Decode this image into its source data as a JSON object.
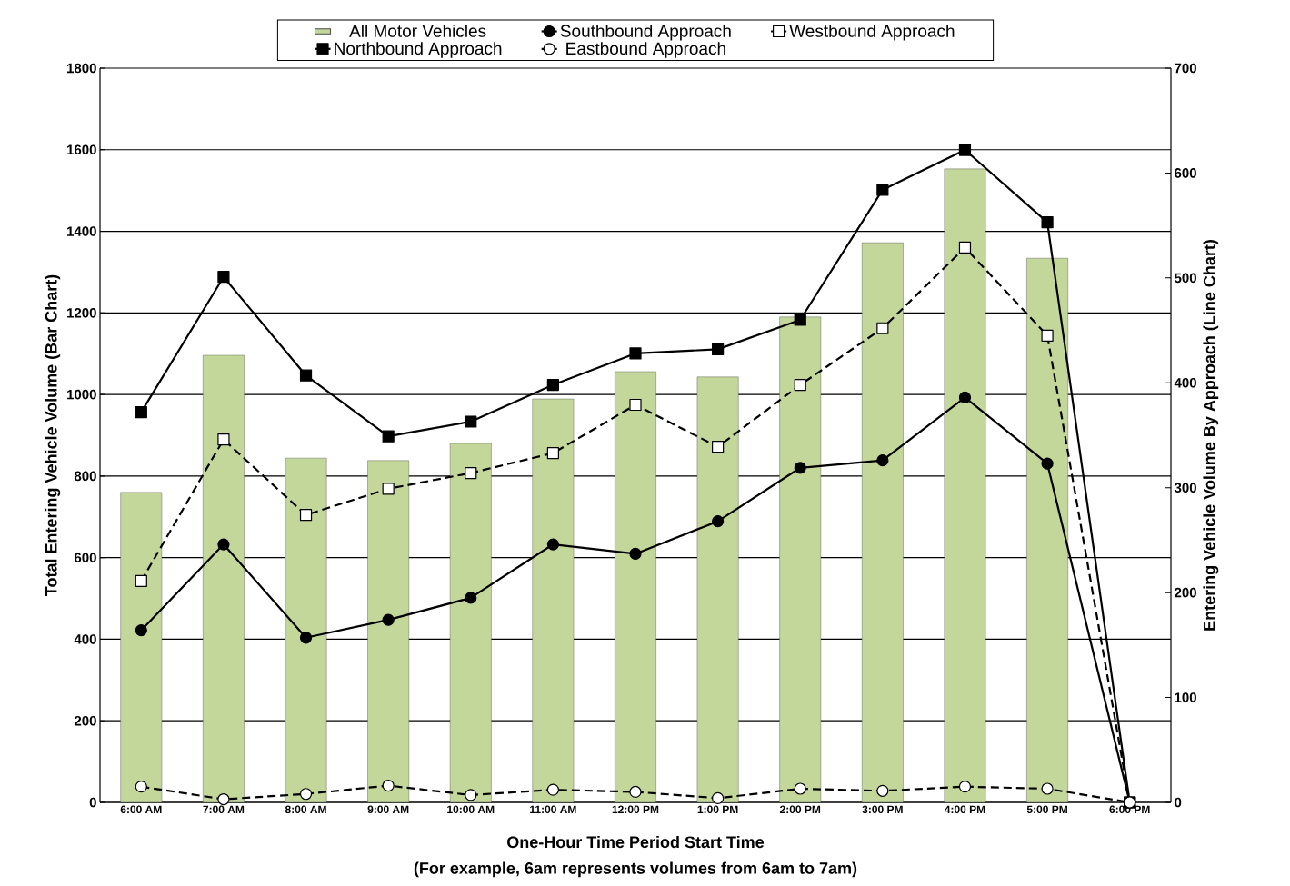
{
  "chart_data": {
    "type": "bar",
    "xlabel": "One-Hour Time Period Start Time",
    "ylabel": "Total Entering Vehicle Volume (Bar Chart)",
    "y2label": "Entering Vehicle Volume By Approach (Line Chart)",
    "annotations": [
      "(For example, 6am represents volumes from 6am to 7am)"
    ],
    "categories": [
      "6:00 AM",
      "7:00 AM",
      "8:00 AM",
      "9:00 AM",
      "10:00 AM",
      "11:00 AM",
      "12:00 PM",
      "1:00 PM",
      "2:00 PM",
      "3:00 PM",
      "4:00 PM",
      "5:00 PM",
      "6:00 PM"
    ],
    "series": [
      {
        "name": "All Motor Vehicles",
        "color": "#c4d79b",
        "values": [
          760,
          1096,
          844,
          838,
          880,
          989,
          1056,
          1043,
          1190,
          1372,
          1553,
          1334,
          null
        ]
      },
      {
        "name": "Southbound Approach",
        "type": "line",
        "axis": "y2",
        "color": "#000000",
        "marker": "circle",
        "line_style": "solid",
        "values": [
          164,
          246,
          157,
          174,
          195,
          246,
          237,
          268,
          319,
          326,
          386,
          323,
          0
        ]
      },
      {
        "name": "Westbound Approach",
        "type": "line",
        "axis": "y2",
        "color": "#000000",
        "marker": "square",
        "line_style": "dashed",
        "values": [
          211,
          346,
          274,
          299,
          314,
          333,
          379,
          339,
          398,
          452,
          529,
          445,
          0
        ]
      },
      {
        "name": "Northbound Approach",
        "type": "line",
        "axis": "y2",
        "color": "#000000",
        "marker": "square",
        "line_style": "solid",
        "values": [
          372,
          501,
          407,
          349,
          363,
          398,
          428,
          432,
          460,
          584,
          622,
          553,
          0
        ]
      },
      {
        "name": "Eastbound Approach",
        "type": "line",
        "axis": "y2",
        "color": "#000000",
        "marker": "circle",
        "line_style": "dashed",
        "values": [
          15,
          3,
          8,
          16,
          7,
          12,
          10,
          4,
          13,
          11,
          15,
          13,
          0
        ]
      }
    ],
    "ylim": [
      0,
      1800
    ],
    "yticks": [
      0,
      200,
      400,
      600,
      800,
      1000,
      1200,
      1400,
      1600,
      1800
    ],
    "y2lim": [
      0,
      700
    ],
    "y2ticks": [
      0,
      100,
      200,
      300,
      400,
      500,
      600,
      700
    ],
    "grid": "y",
    "legend": "top"
  }
}
